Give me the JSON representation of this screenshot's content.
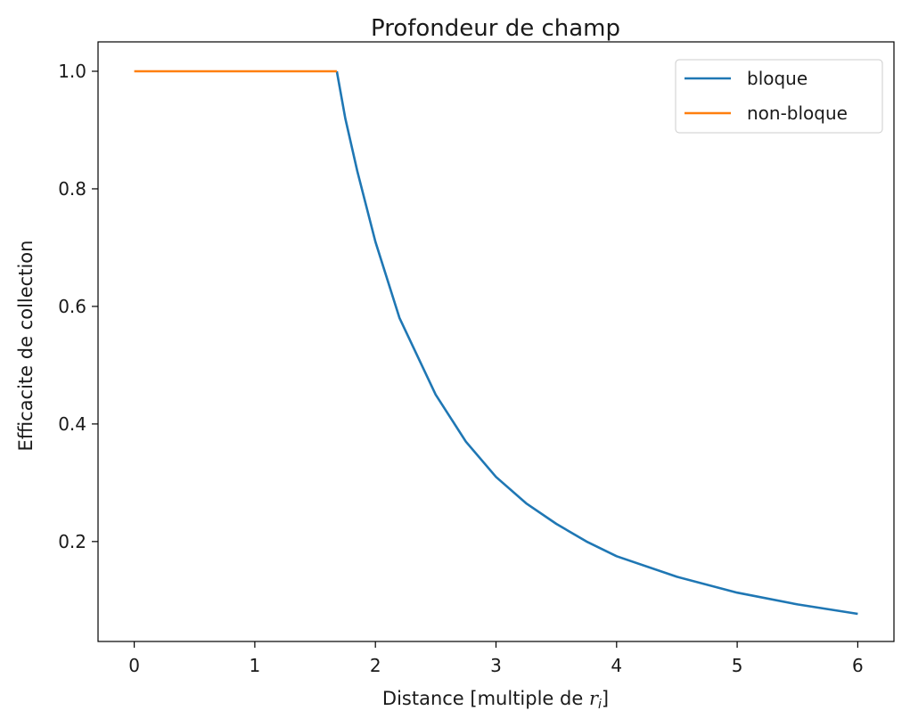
{
  "chart_data": {
    "type": "line",
    "title": "Profondeur de champ",
    "xlabel_main": "Distance [multiple de ",
    "xlabel_var": "r",
    "xlabel_sub": "i",
    "xlabel_end": "]",
    "ylabel": "Efficacite de collection",
    "xlim": [
      -0.3,
      6.3
    ],
    "ylim": [
      0.03,
      1.05
    ],
    "x_ticks": [
      0,
      1,
      2,
      3,
      4,
      5,
      6
    ],
    "x_tick_labels": [
      "0",
      "1",
      "2",
      "3",
      "4",
      "5",
      "6"
    ],
    "y_ticks": [
      0.2,
      0.4,
      0.6,
      0.8,
      1.0
    ],
    "y_tick_labels": [
      "0.2",
      "0.4",
      "0.6",
      "0.8",
      "1.0"
    ],
    "grid": false,
    "legend_position": "top-right",
    "series": [
      {
        "name": "bloque",
        "color": "#1f77b4",
        "x": [
          1.68,
          1.75,
          1.85,
          2.0,
          2.2,
          2.5,
          2.75,
          3.0,
          3.25,
          3.5,
          3.75,
          4.0,
          4.5,
          5.0,
          5.5,
          6.0
        ],
        "y": [
          1.0,
          0.92,
          0.83,
          0.71,
          0.58,
          0.45,
          0.37,
          0.31,
          0.265,
          0.23,
          0.2,
          0.175,
          0.14,
          0.113,
          0.093,
          0.077
        ]
      },
      {
        "name": "non-bloque",
        "color": "#ff7f0e",
        "x": [
          0,
          1.68
        ],
        "y": [
          1.0,
          1.0
        ]
      }
    ]
  }
}
